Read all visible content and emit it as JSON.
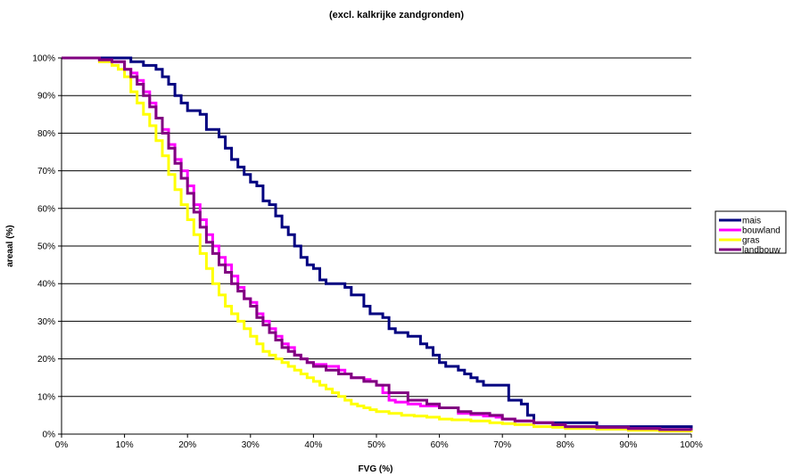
{
  "chart_data": {
    "type": "line",
    "title": "(excl. kalkrijke zandgronden)",
    "xlabel": "FVG (%)",
    "ylabel": "areaal (%)",
    "xlim": [
      0,
      100
    ],
    "ylim": [
      0,
      100
    ],
    "x_ticks": [
      "0%",
      "10%",
      "20%",
      "30%",
      "40%",
      "50%",
      "60%",
      "70%",
      "80%",
      "90%",
      "100%"
    ],
    "y_ticks": [
      "0%",
      "10%",
      "20%",
      "30%",
      "40%",
      "50%",
      "60%",
      "70%",
      "80%",
      "90%",
      "100%"
    ],
    "grid": "horizontal",
    "legend_position": "right",
    "series": [
      {
        "name": "mais",
        "color": "#000080",
        "x": [
          0,
          8,
          10,
          11,
          12,
          13,
          14,
          15,
          16,
          17,
          18,
          19,
          20,
          21,
          22,
          23,
          24,
          25,
          26,
          27,
          28,
          29,
          30,
          31,
          32,
          33,
          34,
          35,
          36,
          37,
          38,
          39,
          40,
          41,
          42,
          43,
          44,
          45,
          46,
          47,
          48,
          49,
          50,
          51,
          52,
          53,
          54,
          55,
          56,
          57,
          58,
          59,
          60,
          61,
          62,
          63,
          64,
          65,
          66,
          67,
          68,
          69,
          70,
          71,
          72,
          73,
          74,
          75,
          76,
          80,
          85,
          90,
          95,
          100
        ],
        "y": [
          100,
          100,
          100,
          99,
          99,
          98,
          98,
          97,
          95,
          93,
          90,
          88,
          86,
          86,
          85,
          81,
          81,
          79,
          76,
          73,
          71,
          69,
          67,
          66,
          62,
          61,
          58,
          55,
          53,
          50,
          47,
          45,
          44,
          41,
          40,
          40,
          40,
          39,
          37,
          37,
          34,
          32,
          32,
          31,
          28,
          27,
          27,
          26,
          26,
          24,
          23,
          21,
          19,
          18,
          18,
          17,
          16,
          15,
          14,
          13,
          13,
          13,
          13,
          9,
          9,
          8,
          5,
          3,
          3,
          3,
          2,
          2,
          2,
          1
        ]
      },
      {
        "name": "bouwland",
        "color": "#ff00ff",
        "x": [
          0,
          6,
          8,
          10,
          11,
          12,
          13,
          14,
          15,
          16,
          17,
          18,
          19,
          20,
          21,
          22,
          23,
          24,
          25,
          26,
          27,
          28,
          29,
          30,
          31,
          32,
          33,
          34,
          35,
          36,
          37,
          38,
          39,
          40,
          42,
          44,
          45,
          46,
          47,
          48,
          49,
          50,
          51,
          52,
          53,
          55,
          57,
          60,
          63,
          65,
          67,
          69,
          70,
          72,
          75,
          78,
          80,
          85,
          90,
          95,
          100
        ],
        "y": [
          100,
          99.5,
          99,
          97,
          96,
          94,
          91,
          88,
          84,
          81,
          77,
          73,
          70,
          66,
          61,
          57,
          53,
          50,
          47,
          45,
          42,
          39,
          36,
          35,
          32,
          30,
          28,
          26,
          24,
          23,
          21,
          20,
          19,
          18.5,
          18,
          17,
          16,
          15,
          15,
          14.5,
          14,
          13,
          11,
          9,
          8.5,
          8,
          7.5,
          7,
          5.5,
          5.2,
          4.8,
          4.5,
          4,
          3.5,
          3,
          2.5,
          2,
          1.8,
          1.5,
          1.2,
          1
        ]
      },
      {
        "name": "gras",
        "color": "#ffff00",
        "x": [
          0,
          6,
          8,
          9,
          10,
          11,
          12,
          13,
          14,
          15,
          16,
          17,
          18,
          19,
          20,
          21,
          22,
          23,
          24,
          25,
          26,
          27,
          28,
          29,
          30,
          31,
          32,
          33,
          34,
          35,
          36,
          37,
          38,
          39,
          40,
          41,
          42,
          43,
          44,
          45,
          46,
          47,
          48,
          49,
          50,
          52,
          54,
          56,
          58,
          60,
          62,
          65,
          68,
          70,
          72,
          75,
          78,
          80,
          85,
          90,
          95,
          100
        ],
        "y": [
          100,
          99,
          98,
          97,
          95,
          91,
          88,
          85,
          82,
          78,
          74,
          69,
          65,
          61,
          57,
          53,
          48,
          44,
          40,
          37,
          34,
          32,
          30,
          28,
          26,
          24,
          22,
          21,
          20,
          19,
          18,
          17,
          16,
          15,
          14,
          13,
          12,
          11,
          10,
          9,
          8,
          7.5,
          7,
          6.5,
          6,
          5.5,
          5,
          4.8,
          4.5,
          4,
          3.8,
          3.5,
          3,
          2.8,
          2.5,
          2,
          1.8,
          1.5,
          1.3,
          1,
          0.8,
          0.5
        ]
      },
      {
        "name": "landbouw",
        "color": "#800080",
        "x": [
          0,
          6,
          8,
          10,
          11,
          12,
          13,
          14,
          15,
          16,
          17,
          18,
          19,
          20,
          21,
          22,
          23,
          24,
          25,
          26,
          27,
          28,
          29,
          30,
          31,
          32,
          33,
          34,
          35,
          36,
          37,
          38,
          39,
          40,
          42,
          44,
          46,
          48,
          50,
          52,
          55,
          58,
          60,
          63,
          65,
          68,
          70,
          72,
          75,
          78,
          80,
          85,
          90,
          95,
          100
        ],
        "y": [
          100,
          99.5,
          99,
          97,
          95,
          93,
          90,
          87,
          84,
          80,
          76,
          72,
          68,
          64,
          59,
          55,
          51,
          48,
          45,
          43,
          40,
          38,
          36,
          34,
          31,
          29,
          27,
          25,
          23,
          22,
          21,
          20,
          19,
          18,
          17,
          16,
          15,
          14,
          13,
          11,
          9,
          8,
          7,
          6,
          5.5,
          5,
          4,
          3.5,
          3,
          2.5,
          2,
          1.8,
          1.5,
          1.2,
          1
        ]
      }
    ]
  }
}
